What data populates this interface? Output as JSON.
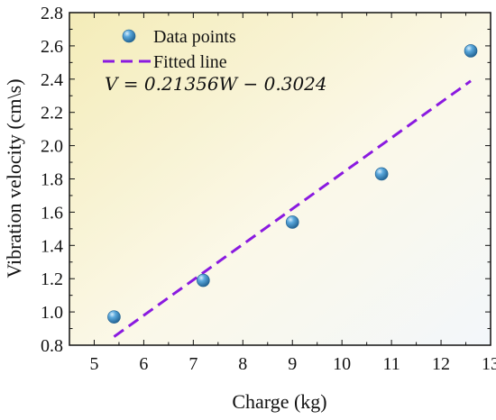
{
  "chart_data": {
    "type": "scatter",
    "xlabel": "Charge (kg)",
    "ylabel": "Vibration velocity (cm\\s)",
    "xlim": [
      4.5,
      13
    ],
    "ylim": [
      0.8,
      2.8
    ],
    "x_ticks": [
      "5",
      "6",
      "7",
      "8",
      "9",
      "10",
      "11",
      "12",
      "13"
    ],
    "y_ticks": [
      "0.8",
      "1.0",
      "1.2",
      "1.4",
      "1.6",
      "1.8",
      "2.0",
      "2.2",
      "2.4",
      "2.6",
      "2.8"
    ],
    "series": [
      {
        "name": "Data points",
        "kind": "scatter",
        "color": "#3c8fc7",
        "x": [
          5.4,
          7.2,
          9.0,
          10.8,
          12.6
        ],
        "y": [
          0.97,
          1.19,
          1.54,
          1.83,
          2.57
        ]
      },
      {
        "name": "Fitted line",
        "kind": "line",
        "style": "dashed",
        "color": "#8a1ae0",
        "x": [
          5.4,
          12.6
        ],
        "y": [
          0.851,
          2.389
        ]
      }
    ],
    "annotation": "V = 0.21356W − 0.3024",
    "legend_position": "top-left",
    "grid": false,
    "background": "yellow-to-white gradient"
  }
}
